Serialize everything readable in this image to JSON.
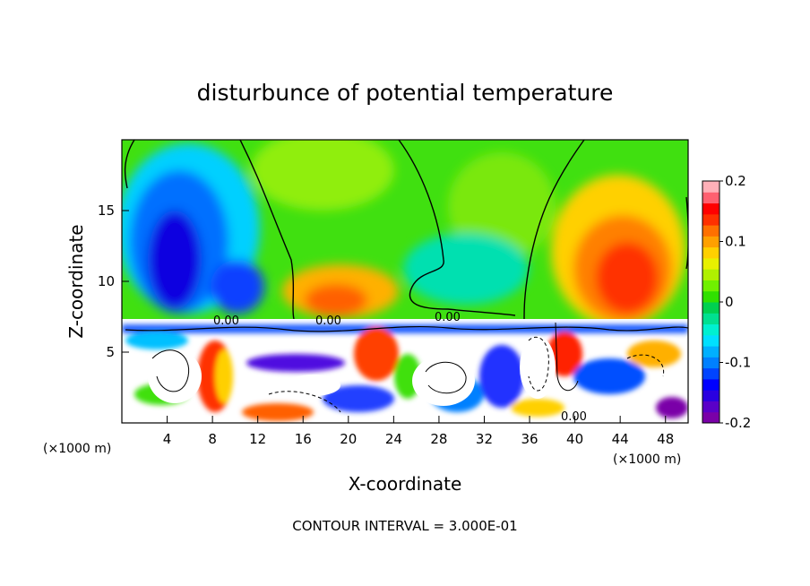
{
  "chart_data": {
    "type": "heatmap",
    "title": "disturbunce of potential temperature",
    "xlabel": "X-coordinate",
    "ylabel": "Z-coordinate",
    "x_unit": "(×1000 m)",
    "xlim": [
      0,
      50
    ],
    "ylim": [
      0,
      20
    ],
    "x_ticks": [
      "4",
      "8",
      "12",
      "16",
      "20",
      "24",
      "28",
      "32",
      "36",
      "40",
      "44",
      "48"
    ],
    "y_ticks": [
      "5",
      "10",
      "15"
    ],
    "colorbar": {
      "range": [
        -0.2,
        0.2
      ],
      "tick_labels": [
        "0.2",
        "0.1",
        "0",
        "-0.1",
        "-0.2"
      ],
      "colors": [
        "#7a00a8",
        "#5a00c8",
        "#2a00e0",
        "#0000ff",
        "#0044ff",
        "#0080ff",
        "#00b0ff",
        "#00e0ff",
        "#00f0d0",
        "#00e090",
        "#00d050",
        "#30e000",
        "#70f000",
        "#b0f000",
        "#e8f000",
        "#ffd000",
        "#ffa000",
        "#ff7000",
        "#ff3000",
        "#ff0000",
        "#ff6070",
        "#ffb0b8"
      ]
    },
    "contour_labels": [
      "0.00",
      "0.00",
      "0.00",
      "0.00"
    ],
    "footer": "CONTOUR INTERVAL = 3.000E-01"
  }
}
